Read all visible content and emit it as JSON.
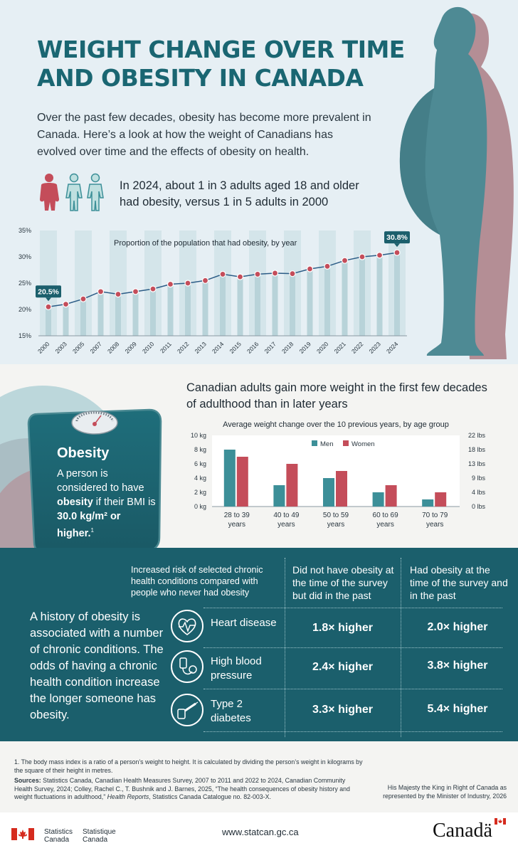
{
  "title": {
    "line1": "WEIGHT CHANGE OVER TIME",
    "line2": "AND OBESITY IN CANADA"
  },
  "intro": "Over the past few decades, obesity has become more prevalent in Canada. Here’s a look at how the weight of Canadians has evolved over time and the effects of obesity on health.",
  "stat_text": "In 2024, about 1 in 3 adults aged 18 and older had obesity, versus 1 in 5 adults in 2000",
  "colors": {
    "teal": "#1b5f6c",
    "title": "#1a6672",
    "bar_teal": "#3c8f98",
    "bar_red": "#c44d5a",
    "silhouette": "#4e8a94",
    "silhouette_shadow": "#b48e95"
  },
  "chart_data": [
    {
      "type": "line",
      "title": "Proportion of the population that had obesity, by year",
      "x": [
        "2000",
        "2003",
        "2005",
        "2007",
        "2008",
        "2009",
        "2010",
        "2011",
        "2012",
        "2013",
        "2014",
        "2015",
        "2016",
        "2017",
        "2018",
        "2019",
        "2020",
        "2021",
        "2022",
        "2023",
        "2024"
      ],
      "values": [
        20.5,
        21.0,
        22.0,
        23.4,
        22.9,
        23.4,
        23.9,
        24.8,
        25.0,
        25.5,
        26.7,
        26.2,
        26.7,
        26.9,
        26.8,
        27.7,
        28.2,
        29.3,
        30.0,
        30.3,
        30.8
      ],
      "ylim": [
        15,
        35
      ],
      "yticks": [
        "15%",
        "20%",
        "25%",
        "30%",
        "35%"
      ],
      "callouts": {
        "start": "20.5%",
        "end": "30.8%"
      },
      "grid": false
    },
    {
      "type": "bar",
      "title": "Average weight change over the 10 previous years, by age group",
      "categories": [
        "28 to 39 years",
        "40 to 49 years",
        "50  to 59 years",
        "60 to 69 years",
        "70 to 79 years"
      ],
      "series": [
        {
          "name": "Men",
          "values": [
            8,
            3,
            4,
            2,
            1
          ]
        },
        {
          "name": "Women",
          "values": [
            7,
            6,
            5,
            3,
            2
          ]
        }
      ],
      "ylim": [
        0,
        10
      ],
      "yticks_left": [
        "0 kg",
        "2 kg",
        "4 kg",
        "6 kg",
        "8 kg",
        "10 kg"
      ],
      "yticks_right": [
        "0 lbs",
        "4 lbs",
        "9 lbs",
        "13 lbs",
        "18 lbs",
        "22 lbs"
      ],
      "legend": "top-center"
    }
  ],
  "section2": {
    "heading": "Canadian adults gain more weight in the first few decades of adulthood than in later years"
  },
  "card": {
    "title": "Obesity",
    "text_a": "A person is considered to have ",
    "text_bold1": "obesity",
    "text_b": " if their BMI is ",
    "text_bold2": "30.0 kg/m² or higher.",
    "footnote_mark": "1",
    "scale_icon": "scale-icon"
  },
  "section3": {
    "col1": "Increased risk of selected chronic health conditions compared with people who never had obesity",
    "col2": "Did not have obesity at the time of the survey but did in the past",
    "col3": "Had obesity at the time of the survey and in the past",
    "lead": "A history of obesity is associated with a number of chronic conditions. The odds of having a chronic health condition increase the longer someone has obesity.",
    "rows": [
      {
        "label": "Heart disease",
        "past": "1.8× higher",
        "current": "2.0× higher",
        "icon": "heart-icon"
      },
      {
        "label": "High blood pressure",
        "past": "2.4× higher",
        "current": "3.8× higher",
        "icon": "blood-pressure-icon"
      },
      {
        "label": "Type 2 diabetes",
        "past": "3.3× higher",
        "current": "5.4× higher",
        "icon": "insulin-pen-icon"
      }
    ]
  },
  "footer": {
    "footnote": "1.  The body mass index is a ratio of a person’s weight to height. It is calculated by dividing the person’s weight in kilograms by the square of their height in metres.",
    "sources_label": "Sources:",
    "sources_text": " Statistics Canada, Canadian Health Measures Survey, 2007 to 2011 and 2022 to 2024, Canadian Community Health Survey, 2024; Colley, Rachel C., T. Bushnik and J. Barnes, 2025, “The health consequences of obesity history and weight fluctuations in adulthood,” ",
    "sources_journal": "Health Reports",
    "sources_end": ", Statistics Canada Catalogue no. 82-003-X.",
    "crown": "His Majesty the King in Right of Canada as represented by the Minister of Industry, 2026",
    "agency_en": [
      "Statistics",
      "Canada"
    ],
    "agency_fr": [
      "Statistique",
      "Canada"
    ],
    "website": "www.statcan.gc.ca",
    "wordmark": "Canadä"
  }
}
